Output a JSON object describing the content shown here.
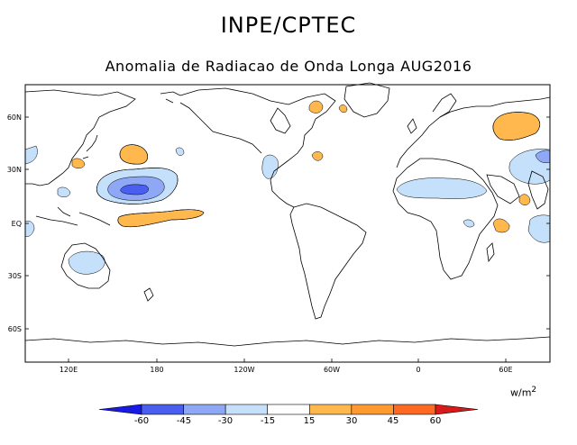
{
  "header": {
    "title": "INPE/CPTEC",
    "subtitle": "Anomalia de Radiacao de Onda Longa AUG2016"
  },
  "map": {
    "lat_labels": [
      "60N",
      "30N",
      "EQ",
      "30S",
      "60S"
    ],
    "lon_labels": [
      "120E",
      "180",
      "120W",
      "60W",
      "0",
      "60E"
    ]
  },
  "colorbar": {
    "units_base": "w/m",
    "units_exp": "2",
    "bins": [
      {
        "color": "#1a1ae6"
      },
      {
        "color": "#4a5ef0"
      },
      {
        "color": "#8fa8f5"
      },
      {
        "color": "#c4e0fa"
      },
      {
        "color": "#ffffff"
      },
      {
        "color": "#ffb84d"
      },
      {
        "color": "#ff9a30"
      },
      {
        "color": "#ff6a22"
      },
      {
        "color": "#d91a1a"
      }
    ],
    "tick_labels": [
      "-60",
      "-45",
      "-30",
      "-15",
      "15",
      "30",
      "45",
      "60"
    ]
  },
  "anomaly_colors": {
    "pos15": "#ffb84d",
    "neg15": "#c4e0fa",
    "neg30": "#8fa8f5",
    "neg45": "#4a5ef0"
  }
}
